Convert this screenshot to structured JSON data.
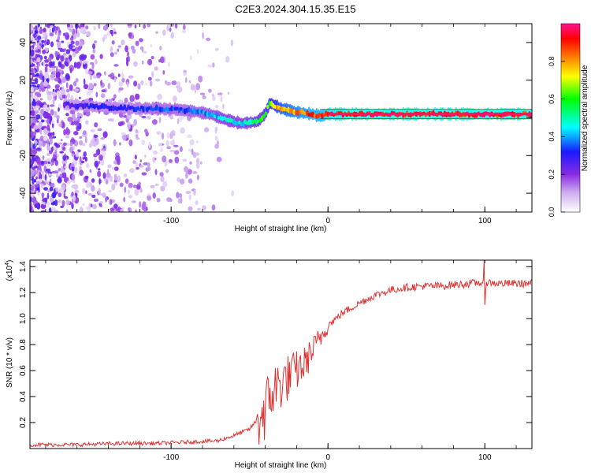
{
  "title": "C2E3.2024.304.15.35.E15",
  "colors": {
    "axis": "#000000",
    "snr_line": "#e03030",
    "colormap": [
      "#ffffff",
      "#d0b0f0",
      "#8a2be2",
      "#1a1aff",
      "#00ffff",
      "#00ff00",
      "#ffff00",
      "#ff8000",
      "#ff0000",
      "#ff1493"
    ]
  },
  "chart_data": [
    {
      "type": "heatmap",
      "xlabel": "Height of straight line (km)",
      "ylabel": "Frequency (Hz)",
      "xlim": [
        -190,
        130
      ],
      "ylim": [
        -50,
        50
      ],
      "x_ticks": [
        "-100",
        "0",
        "100"
      ],
      "y_ticks": [
        "40",
        "20",
        "0",
        "-20",
        "-40"
      ],
      "colorbar": {
        "label": "Normalized spectral amplitude",
        "range": [
          0,
          1
        ],
        "ticks": [
          "0.0",
          "0.2",
          "0.4",
          "0.6",
          "0.8"
        ]
      },
      "ridge": {
        "x": [
          -165,
          -150,
          -130,
          -110,
          -90,
          -75,
          -65,
          -55,
          -45,
          -40,
          -37,
          -30,
          -20,
          -10,
          -5,
          0,
          20,
          60,
          100,
          130
        ],
        "y": [
          7,
          6,
          5,
          5,
          4,
          2,
          -1,
          -3,
          -2,
          2,
          8,
          5,
          3,
          2,
          1,
          2,
          2,
          2,
          2,
          2
        ],
        "relative_amplitude": [
          0.3,
          0.35,
          0.35,
          0.4,
          0.4,
          0.45,
          0.5,
          0.5,
          0.55,
          0.6,
          0.7,
          0.8,
          0.85,
          0.9,
          0.9,
          0.95,
          1.0,
          1.0,
          1.0,
          1.0
        ]
      }
    },
    {
      "type": "line",
      "xlabel": "Height of straight line (km)",
      "ylabel": "SNR (10 * v/v)",
      "y_multiplier": "(x10",
      "y_multiplier_exp": "4",
      "y_multiplier_close": ")",
      "xlim": [
        -190,
        130
      ],
      "ylim": [
        0,
        1.45
      ],
      "x_ticks": [
        "-100",
        "0",
        "100"
      ],
      "y_ticks": [
        "1.4",
        "1.2",
        "1.0",
        "0.8",
        "0.6",
        "0.4",
        "0.2"
      ],
      "series": [
        {
          "x": [
            -190,
            -160,
            -130,
            -110,
            -90,
            -70,
            -60,
            -50,
            -40,
            -35,
            -30,
            -25,
            -20,
            -15,
            -10,
            -5,
            0,
            5,
            10,
            20,
            30,
            40,
            50,
            60,
            70,
            80,
            90,
            100,
            110,
            120,
            130
          ],
          "y": [
            0.03,
            0.03,
            0.04,
            0.04,
            0.05,
            0.06,
            0.1,
            0.15,
            0.3,
            0.45,
            0.5,
            0.55,
            0.6,
            0.65,
            0.75,
            0.85,
            0.95,
            1.0,
            1.05,
            1.12,
            1.18,
            1.22,
            1.24,
            1.25,
            1.25,
            1.26,
            1.27,
            1.28,
            1.27,
            1.27,
            1.27
          ]
        }
      ]
    }
  ]
}
